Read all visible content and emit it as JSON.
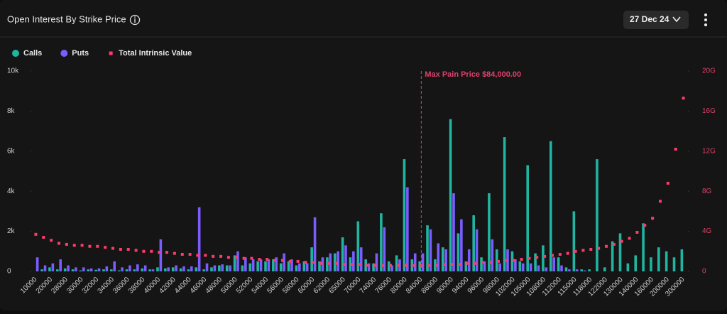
{
  "header": {
    "title": "Open Interest By Strike Price",
    "date_selector": "27 Dec 24"
  },
  "chart_data": {
    "type": "bar-line",
    "categories": [
      "10000",
      null,
      "20000",
      null,
      "28000",
      null,
      "30000",
      null,
      "32000",
      null,
      "34000",
      null,
      "36000",
      null,
      "38000",
      null,
      "40000",
      null,
      "42000",
      null,
      "44000",
      null,
      "46000",
      null,
      "48000",
      null,
      "50000",
      null,
      "52000",
      null,
      "54000",
      null,
      "56000",
      null,
      "58000",
      null,
      "60000",
      null,
      "62000",
      null,
      "65000",
      null,
      "70000",
      null,
      "74000",
      null,
      "76000",
      null,
      "80000",
      null,
      "84000",
      null,
      "86000",
      null,
      "90000",
      null,
      "94000",
      null,
      "96000",
      null,
      "98000",
      null,
      "102000",
      null,
      "105000",
      null,
      "108000",
      null,
      "112000",
      null,
      "115000",
      null,
      "118000",
      null,
      "122000",
      null,
      "130000",
      null,
      "140000",
      null,
      "160000",
      null,
      "200000",
      null,
      "300000"
    ],
    "series": [
      {
        "name": "Calls",
        "color": "#1fb5a0",
        "values": [
          0,
          100,
          200,
          100,
          150,
          100,
          50,
          100,
          80,
          100,
          100,
          50,
          100,
          100,
          150,
          100,
          200,
          150,
          200,
          150,
          100,
          200,
          100,
          200,
          300,
          300,
          800,
          300,
          400,
          500,
          500,
          600,
          400,
          500,
          300,
          500,
          1200,
          500,
          700,
          900,
          1700,
          700,
          2500,
          600,
          400,
          2900,
          500,
          800,
          5600,
          600,
          500,
          2300,
          600,
          1200,
          7600,
          1900,
          500,
          2800,
          700,
          3900,
          1100,
          6700,
          1000,
          500,
          5300,
          900,
          1300,
          6500,
          700,
          200,
          3000,
          100,
          100,
          5600,
          200,
          1500,
          1900,
          400,
          800,
          2400,
          700,
          1200,
          1000,
          700,
          1100
        ]
      },
      {
        "name": "Puts",
        "color": "#7b5cff",
        "values": [
          700,
          300,
          400,
          600,
          300,
          200,
          200,
          150,
          150,
          250,
          500,
          200,
          300,
          350,
          300,
          100,
          1600,
          200,
          300,
          250,
          250,
          3200,
          400,
          300,
          350,
          300,
          1000,
          700,
          600,
          600,
          600,
          700,
          900,
          600,
          400,
          400,
          2700,
          700,
          900,
          1000,
          1300,
          1000,
          1200,
          400,
          900,
          2200,
          300,
          600,
          4200,
          900,
          900,
          2100,
          1400,
          1100,
          3900,
          2600,
          1100,
          2100,
          500,
          1600,
          400,
          1100,
          600,
          400,
          400,
          300,
          200,
          700,
          300,
          100,
          100,
          50,
          0,
          0,
          0,
          0,
          0,
          0,
          0,
          0,
          0,
          0,
          0,
          0,
          0
        ]
      },
      {
        "name": "Total Intrinsic Value",
        "color": "#ff3b6b",
        "axis": "y2",
        "values": [
          3.7,
          3.4,
          3.1,
          2.8,
          2.7,
          2.6,
          2.6,
          2.5,
          2.5,
          2.4,
          2.3,
          2.2,
          2.2,
          2.1,
          2.0,
          2.0,
          1.9,
          1.9,
          1.8,
          1.7,
          1.7,
          1.6,
          1.6,
          1.5,
          1.5,
          1.4,
          1.4,
          1.3,
          1.3,
          1.2,
          1.2,
          1.1,
          1.1,
          1.0,
          1.0,
          0.9,
          0.9,
          0.8,
          0.8,
          0.8,
          0.7,
          0.7,
          0.7,
          0.6,
          0.6,
          0.6,
          0.6,
          0.6,
          0.6,
          0.6,
          0.6,
          0.6,
          0.6,
          0.7,
          0.7,
          0.7,
          0.8,
          0.8,
          0.9,
          0.9,
          1.0,
          1.1,
          1.1,
          1.2,
          1.3,
          1.4,
          1.5,
          1.6,
          1.7,
          1.8,
          2.0,
          2.1,
          2.2,
          2.3,
          2.5,
          2.7,
          3.0,
          3.3,
          3.9,
          4.6,
          5.3,
          7.0,
          8.8,
          12.2,
          17.3
        ]
      }
    ],
    "ylim": [
      0,
      10000
    ],
    "yticks": [
      0,
      {
        "value": 2000,
        "label": "2k"
      },
      {
        "value": 4000,
        "label": "4k"
      },
      {
        "value": 6000,
        "label": "6k"
      },
      {
        "value": 8000,
        "label": "8k"
      },
      {
        "value": 10000,
        "label": "10k"
      }
    ],
    "y2lim": [
      0,
      20
    ],
    "y2ticks": [
      0,
      {
        "value": 4,
        "label": "4G"
      },
      {
        "value": 8,
        "label": "8G"
      },
      {
        "value": 12,
        "label": "12G"
      },
      {
        "value": 16,
        "label": "16G"
      },
      {
        "value": 20,
        "label": "20G"
      }
    ],
    "max_pain": {
      "label": "Max Pain Price $84,000.00",
      "category": "84000",
      "color": "#e0406a"
    },
    "grid": false
  }
}
